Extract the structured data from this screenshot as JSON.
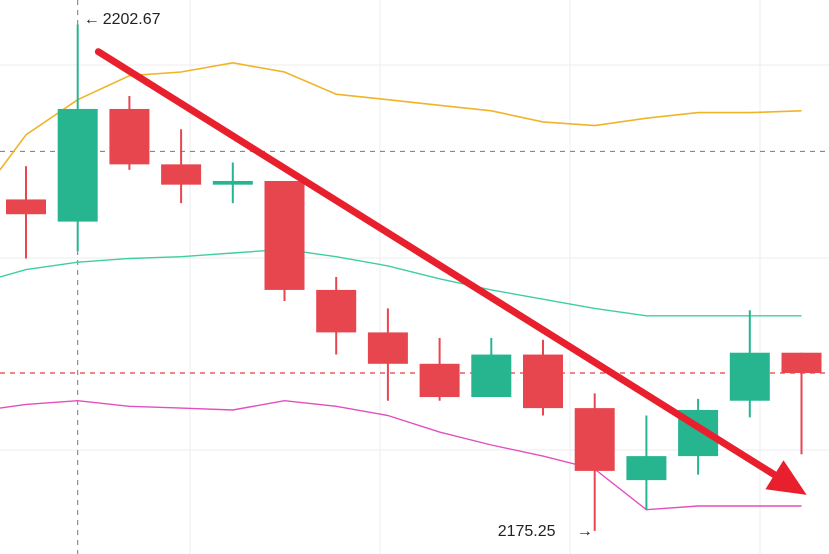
{
  "chart_data": {
    "type": "candlestick",
    "title": "",
    "xlabel": "",
    "ylabel": "",
    "ylim": [
      2174,
      2204
    ],
    "grid": true,
    "colors": {
      "up": "#26b58f",
      "down": "#e8464f",
      "upper_band": "#f0b429",
      "middle_band": "#3ecfa0",
      "lower_band": "#e24fbf",
      "trend_arrow": "#e8202e",
      "high_line": "#777777",
      "ref_line": "#e23c48",
      "grid": "#eeeeee"
    },
    "candles": [
      {
        "open": 2193.2,
        "high": 2195.0,
        "low": 2190.0,
        "close": 2192.4
      },
      {
        "open": 2192.0,
        "high": 2202.67,
        "low": 2190.4,
        "close": 2198.1
      },
      {
        "open": 2198.1,
        "high": 2198.8,
        "low": 2194.8,
        "close": 2195.1
      },
      {
        "open": 2195.1,
        "high": 2197.0,
        "low": 2193.0,
        "close": 2194.0
      },
      {
        "open": 2194.0,
        "high": 2195.2,
        "low": 2193.0,
        "close": 2194.2
      },
      {
        "open": 2194.2,
        "high": 2194.2,
        "low": 2187.7,
        "close": 2188.3
      },
      {
        "open": 2188.3,
        "high": 2189.0,
        "low": 2184.8,
        "close": 2186.0
      },
      {
        "open": 2186.0,
        "high": 2187.3,
        "low": 2182.3,
        "close": 2184.3
      },
      {
        "open": 2184.3,
        "high": 2185.7,
        "low": 2182.3,
        "close": 2182.5
      },
      {
        "open": 2182.5,
        "high": 2185.7,
        "low": 2182.5,
        "close": 2184.8
      },
      {
        "open": 2184.8,
        "high": 2185.6,
        "low": 2181.5,
        "close": 2181.9
      },
      {
        "open": 2181.9,
        "high": 2182.7,
        "low": 2175.25,
        "close": 2178.5
      },
      {
        "open": 2178.0,
        "high": 2181.5,
        "low": 2176.4,
        "close": 2179.3
      },
      {
        "open": 2179.3,
        "high": 2182.4,
        "low": 2178.3,
        "close": 2181.8
      },
      {
        "open": 2182.3,
        "high": 2187.2,
        "low": 2181.4,
        "close": 2184.9
      },
      {
        "open": 2184.9,
        "high": 2184.9,
        "low": 2179.4,
        "close": 2183.8
      }
    ],
    "bands": {
      "upper": [
        2196.7,
        2198.6,
        2199.9,
        2200.1,
        2200.6,
        2200.1,
        2198.9,
        2198.6,
        2198.3,
        2198.0,
        2197.4,
        2197.2,
        2197.6,
        2197.9,
        2197.9,
        2198.0
      ],
      "middle": [
        2189.4,
        2189.8,
        2190.0,
        2190.1,
        2190.3,
        2190.5,
        2190.1,
        2189.6,
        2188.9,
        2188.3,
        2187.8,
        2187.3,
        2186.9,
        2186.9,
        2186.9,
        2186.9
      ],
      "lower": [
        2182.1,
        2182.3,
        2182.0,
        2181.9,
        2181.8,
        2182.3,
        2182.0,
        2181.5,
        2180.6,
        2179.9,
        2179.3,
        2178.6,
        2176.4,
        2176.6,
        2176.6,
        2176.6
      ]
    },
    "high_marker": {
      "index": 1,
      "value": 2202.67,
      "label": "2202.67"
    },
    "low_marker": {
      "index": 11,
      "value": 2175.25,
      "label": "2175.25"
    },
    "grid_dash_level": 2195.8,
    "ref_level": 2183.8,
    "trend_arrow": {
      "from_index": 1.4,
      "from_value": 2201.2,
      "to_index": 15.1,
      "to_value": 2177.2
    }
  }
}
